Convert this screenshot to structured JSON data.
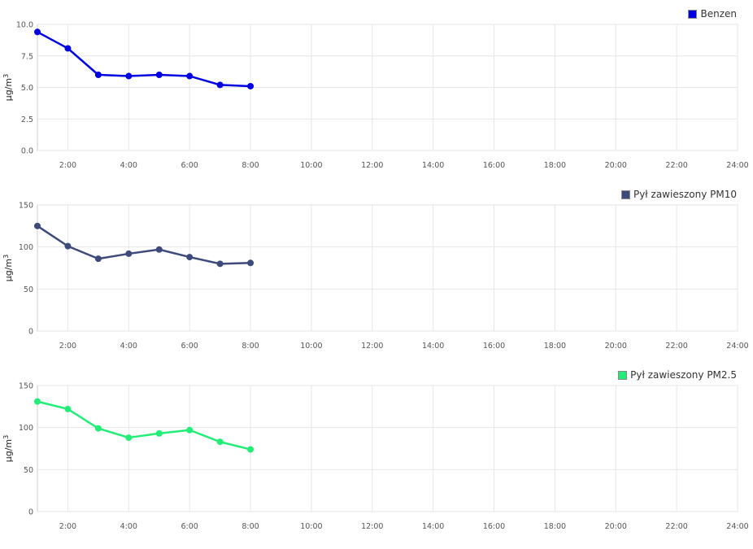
{
  "chart_data": [
    {
      "type": "line",
      "title": "",
      "xlabel": "",
      "ylabel": "µg/m3",
      "x": [
        "1:00",
        "2:00",
        "3:00",
        "4:00",
        "5:00",
        "6:00",
        "7:00",
        "8:00"
      ],
      "x_hours": [
        1,
        2,
        3,
        4,
        5,
        6,
        7,
        8
      ],
      "xlim": [
        1,
        24
      ],
      "x_ticks": [
        "2:00",
        "4:00",
        "6:00",
        "8:00",
        "10:00",
        "12:00",
        "14:00",
        "16:00",
        "18:00",
        "20:00",
        "22:00",
        "24:00"
      ],
      "ylim": [
        0,
        10
      ],
      "y_ticks": [
        "0.0",
        "2.5",
        "5.0",
        "7.5",
        "10.0"
      ],
      "grid": true,
      "legend_position": "top-right",
      "series": [
        {
          "name": "Benzen",
          "color": "#0000e0",
          "values": [
            9.4,
            8.1,
            6.0,
            5.9,
            6.0,
            5.9,
            5.2,
            5.1
          ]
        }
      ]
    },
    {
      "type": "line",
      "title": "",
      "xlabel": "",
      "ylabel": "µg/m3",
      "x": [
        "1:00",
        "2:00",
        "3:00",
        "4:00",
        "5:00",
        "6:00",
        "7:00",
        "8:00"
      ],
      "x_hours": [
        1,
        2,
        3,
        4,
        5,
        6,
        7,
        8
      ],
      "xlim": [
        1,
        24
      ],
      "x_ticks": [
        "2:00",
        "4:00",
        "6:00",
        "8:00",
        "10:00",
        "12:00",
        "14:00",
        "16:00",
        "18:00",
        "20:00",
        "22:00",
        "24:00"
      ],
      "ylim": [
        0,
        150
      ],
      "y_ticks": [
        "0",
        "50",
        "100",
        "150"
      ],
      "grid": true,
      "legend_position": "top-right",
      "series": [
        {
          "name": "Pył zawieszony PM10",
          "color": "#3d4a7a",
          "values": [
            125,
            101,
            86,
            92,
            97,
            88,
            80,
            81
          ]
        }
      ]
    },
    {
      "type": "line",
      "title": "",
      "xlabel": "",
      "ylabel": "µg/m3",
      "x": [
        "1:00",
        "2:00",
        "3:00",
        "4:00",
        "5:00",
        "6:00",
        "7:00",
        "8:00"
      ],
      "x_hours": [
        1,
        2,
        3,
        4,
        5,
        6,
        7,
        8
      ],
      "xlim": [
        1,
        24
      ],
      "x_ticks": [
        "2:00",
        "4:00",
        "6:00",
        "8:00",
        "10:00",
        "12:00",
        "14:00",
        "16:00",
        "18:00",
        "20:00",
        "22:00",
        "24:00"
      ],
      "ylim": [
        0,
        150
      ],
      "y_ticks": [
        "0",
        "50",
        "100",
        "150"
      ],
      "grid": true,
      "legend_position": "top-right",
      "series": [
        {
          "name": "Pył zawieszony PM2.5",
          "color": "#22ee77",
          "values": [
            131,
            122,
            99,
            88,
            93,
            97,
            83,
            74
          ]
        }
      ]
    }
  ]
}
